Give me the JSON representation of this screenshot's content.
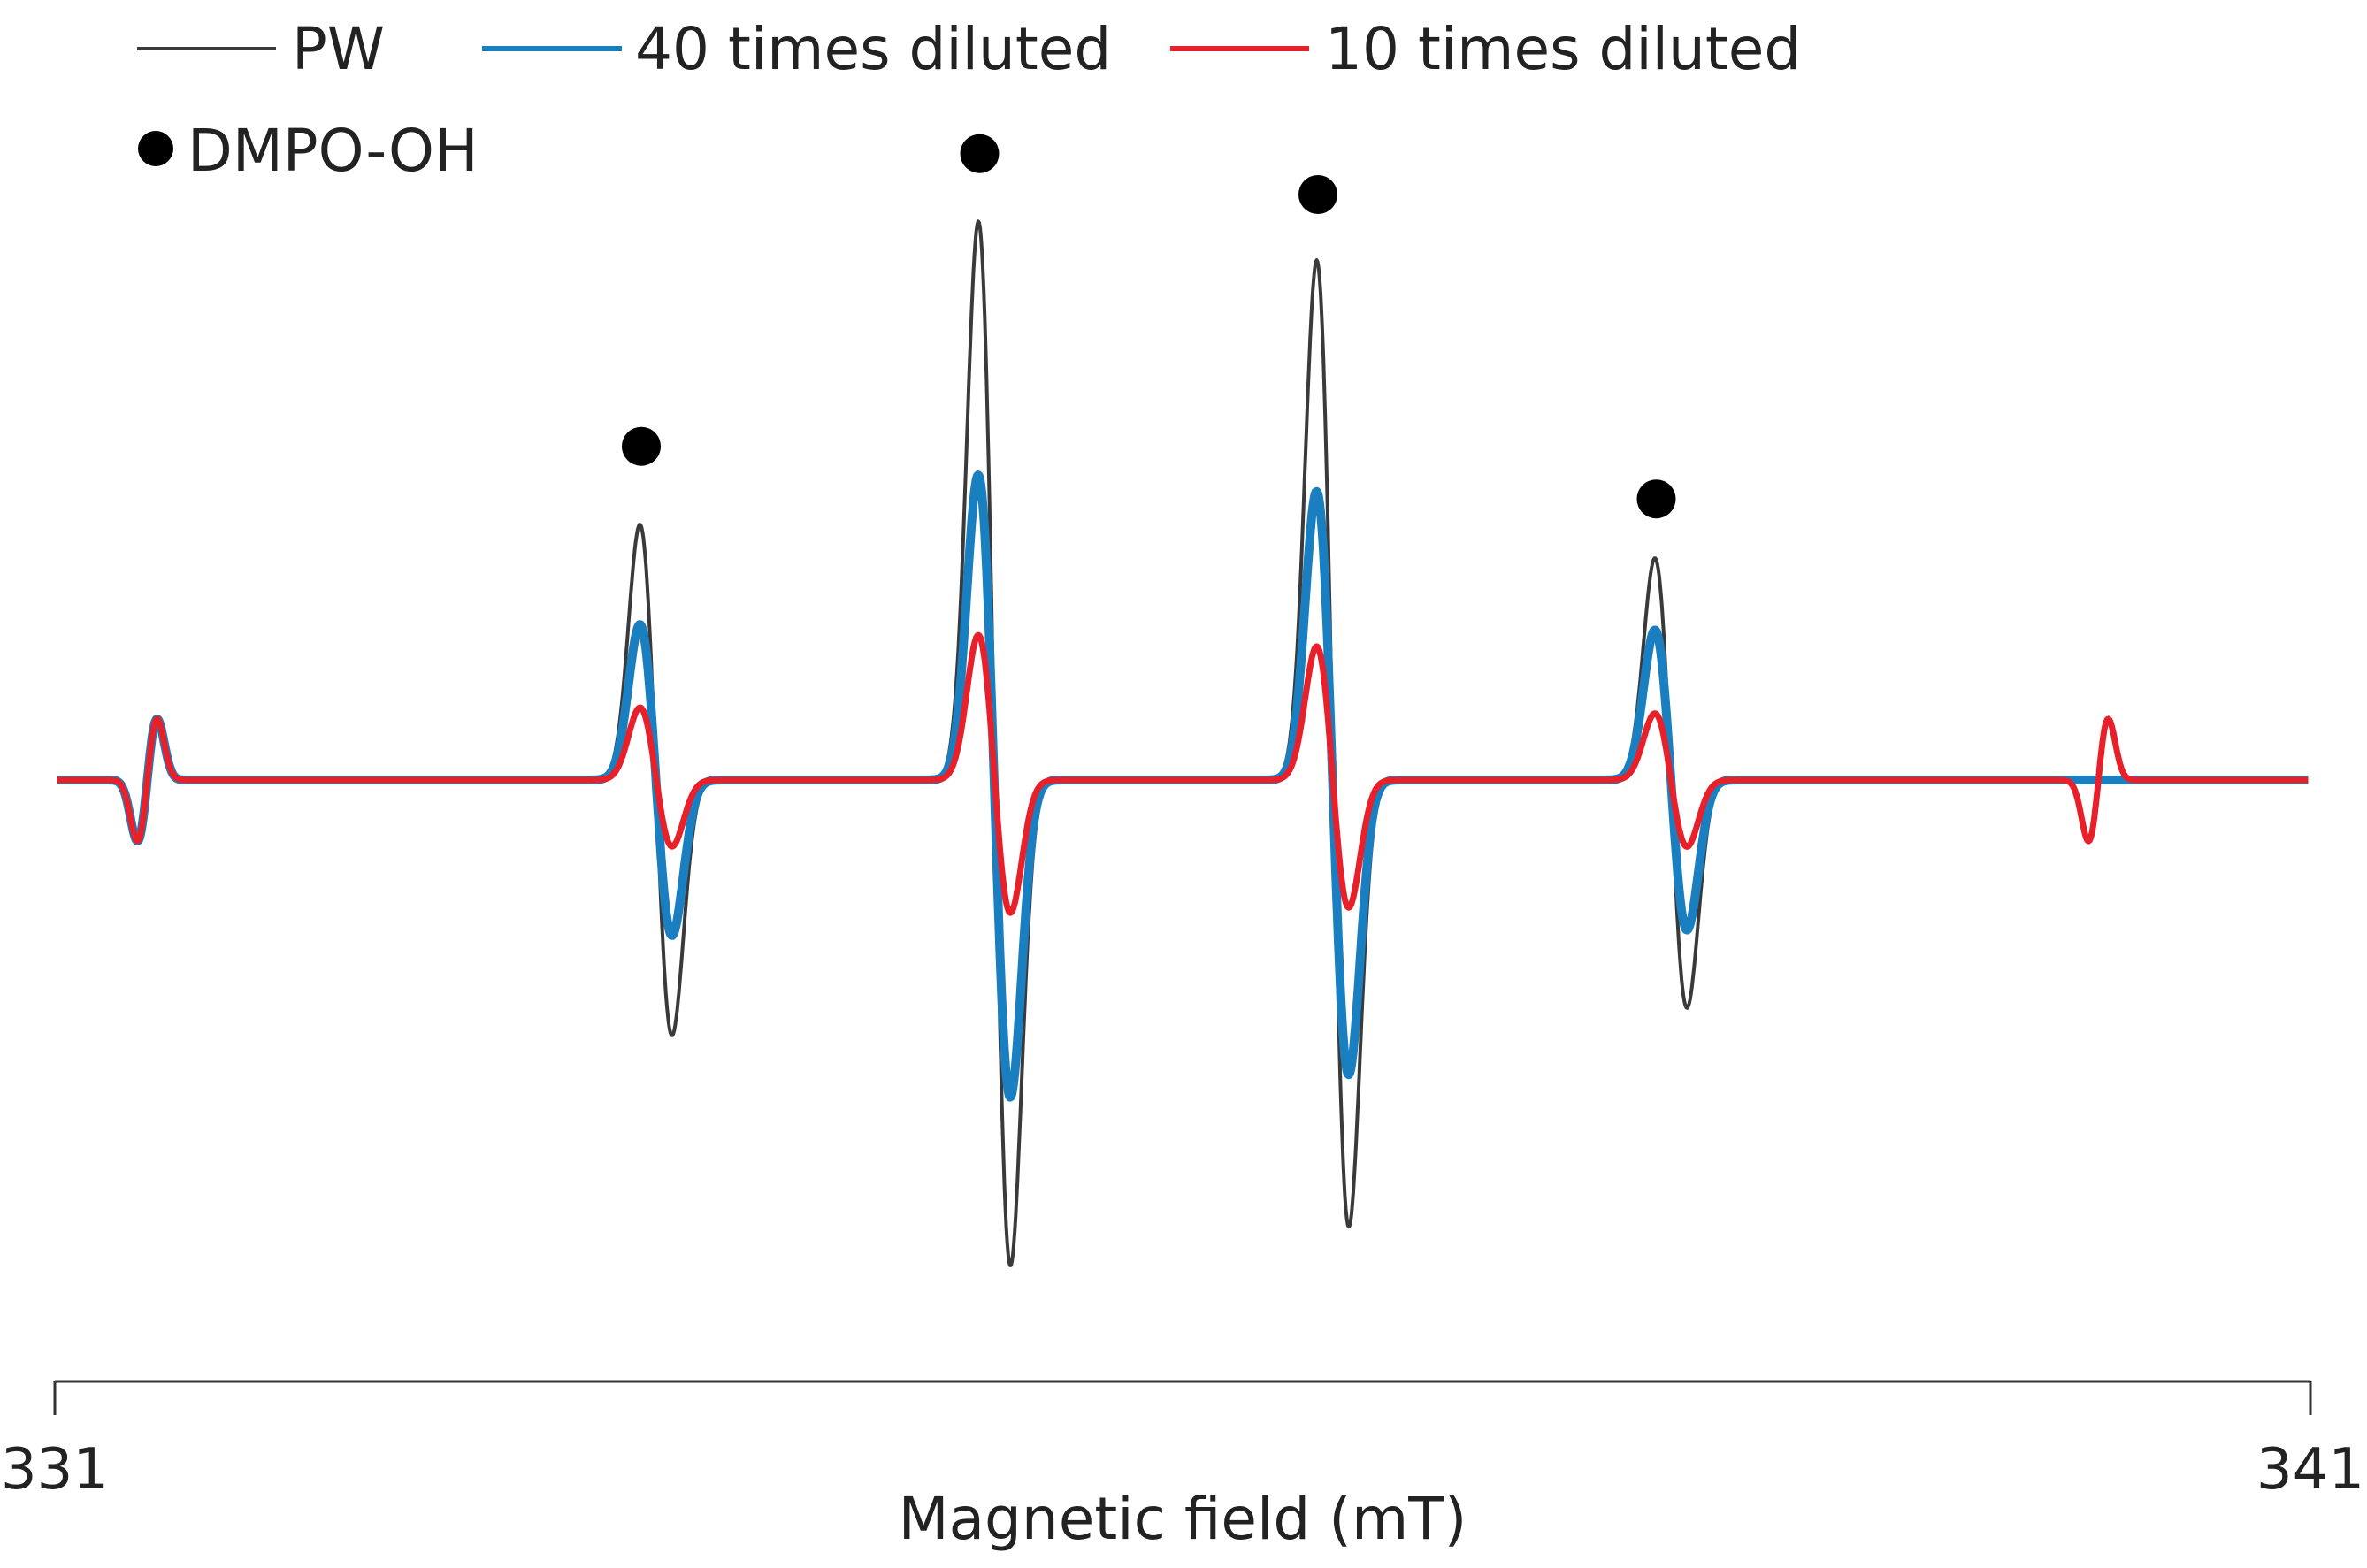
{
  "chart_data": {
    "type": "line",
    "xlabel": "Magnetic field (mT)",
    "xlim": [
      331,
      341
    ],
    "x_ticks": [
      "331",
      "341"
    ],
    "grid": false,
    "legend_placement": "top-left",
    "series": [
      {
        "name": "PW",
        "color": "#3a3a3a",
        "peaks": [
          {
            "x": 331.45,
            "y": 0.11,
            "min_x": 331.37,
            "min_y": -0.11
          },
          {
            "x": 333.6,
            "y": 0.46,
            "min_x": 333.73,
            "min_y": -0.46
          },
          {
            "x": 335.1,
            "y": 1.0,
            "min_x": 335.23,
            "min_y": -0.88
          },
          {
            "x": 336.6,
            "y": 0.93,
            "min_x": 336.73,
            "min_y": -0.81
          },
          {
            "x": 338.1,
            "y": 0.4,
            "min_x": 338.23,
            "min_y": -0.41
          },
          {
            "x": 340.1,
            "y": 0.11,
            "min_x": 340.02,
            "min_y": -0.11
          }
        ]
      },
      {
        "name": "40 times diluted",
        "color": "#1a7fc0",
        "peaks": [
          {
            "x": 331.45,
            "y": 0.11,
            "min_x": 331.37,
            "min_y": -0.11
          },
          {
            "x": 333.6,
            "y": 0.28,
            "min_x": 333.73,
            "min_y": -0.28
          },
          {
            "x": 335.1,
            "y": 0.55,
            "min_x": 335.23,
            "min_y": -0.57
          },
          {
            "x": 336.6,
            "y": 0.52,
            "min_x": 336.73,
            "min_y": -0.53
          },
          {
            "x": 338.1,
            "y": 0.27,
            "min_x": 338.23,
            "min_y": -0.27
          }
        ]
      },
      {
        "name": "10 times diluted",
        "color": "#e8202a",
        "peaks": [
          {
            "x": 331.45,
            "y": 0.11,
            "min_x": 331.37,
            "min_y": -0.11
          },
          {
            "x": 333.6,
            "y": 0.13,
            "min_x": 333.73,
            "min_y": -0.12
          },
          {
            "x": 335.1,
            "y": 0.26,
            "min_x": 335.23,
            "min_y": -0.24
          },
          {
            "x": 336.6,
            "y": 0.24,
            "min_x": 336.73,
            "min_y": -0.23
          },
          {
            "x": 338.1,
            "y": 0.12,
            "min_x": 338.23,
            "min_y": -0.12
          },
          {
            "x": 340.1,
            "y": 0.11,
            "min_x": 340.02,
            "min_y": -0.11
          }
        ]
      }
    ],
    "markers": {
      "label": "DMPO-OH",
      "points": [
        {
          "x": 333.6,
          "y": 0.57
        },
        {
          "x": 335.1,
          "y": 1.07
        },
        {
          "x": 336.6,
          "y": 1.0
        },
        {
          "x": 338.1,
          "y": 0.48
        }
      ]
    }
  }
}
